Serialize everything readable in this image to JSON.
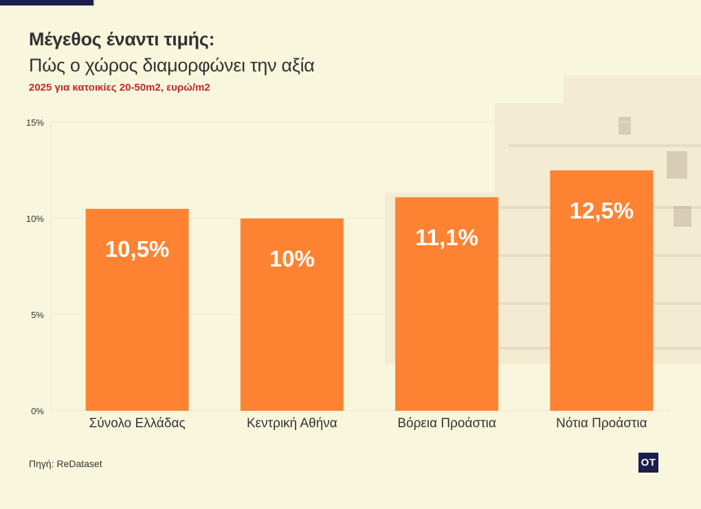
{
  "title": "Μέγεθος έναντι τιμής:",
  "subtitle": "Πώς ο χώρος διαμορφώνει την αξία",
  "note": "2025 για κατοικίες 20-50m2, ευρώ/m2",
  "source": "Πηγή: ReDataset",
  "logo_text": "OT",
  "colors": {
    "bar": "#fd7f2c",
    "title": "#333333",
    "note": "#c2272d",
    "background": "#f8f6dc",
    "logo": "#1b1d4f"
  },
  "chart_data": {
    "type": "bar",
    "categories": [
      "Σύνολο Ελλάδας",
      "Κεντρική Αθήνα",
      "Βόρεια Προάστια",
      "Νότια Προάστια"
    ],
    "values": [
      10.5,
      10,
      11.1,
      12.5
    ],
    "value_labels": [
      "10,5%",
      "10%",
      "11,1%",
      "12,5%"
    ],
    "yticks": [
      0,
      5,
      10,
      15
    ],
    "ytick_labels": [
      "0%",
      "5%",
      "10%",
      "15%"
    ],
    "ylim": [
      0,
      15
    ],
    "grid": true
  }
}
